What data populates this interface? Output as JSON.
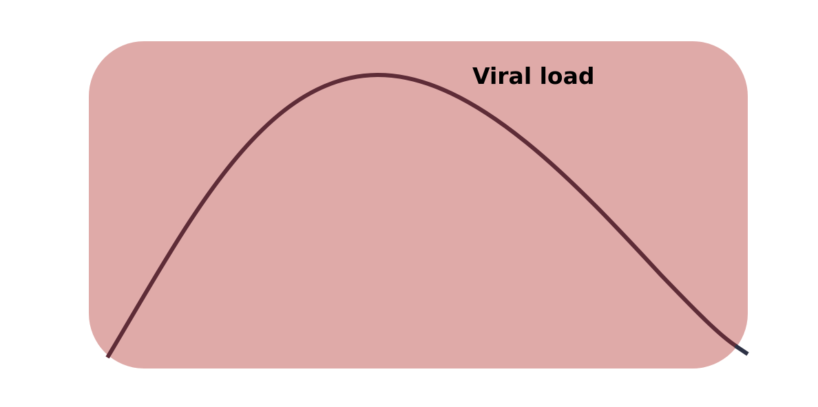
{
  "diagram": {
    "label": "Viral load",
    "colors": {
      "background": "#ffffff",
      "panel_fill": "#dfaaa8",
      "curve_stroke": "#5e2c37",
      "curve_tail_stroke": "#2d3245"
    },
    "curve": {
      "description_shape": "rise-to-peak-then-decline",
      "peak_position": "upper-middle"
    }
  }
}
